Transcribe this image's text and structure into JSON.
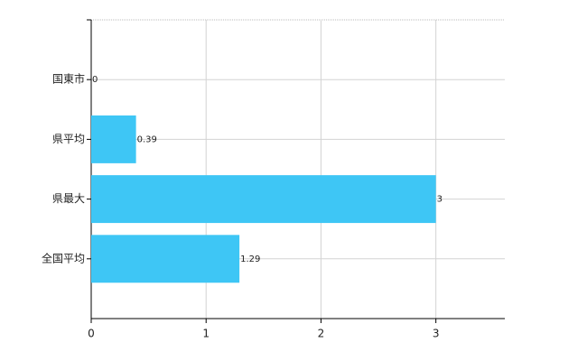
{
  "chart_data": {
    "type": "hbar",
    "categories": [
      "国東市",
      "県平均",
      "県最大",
      "全国平均"
    ],
    "values": [
      0,
      0.39,
      3,
      1.29
    ],
    "color": "#3ec6f5",
    "xlim": [
      0,
      3.6
    ],
    "xticks": [
      0,
      1,
      2,
      3
    ],
    "grid": true
  }
}
